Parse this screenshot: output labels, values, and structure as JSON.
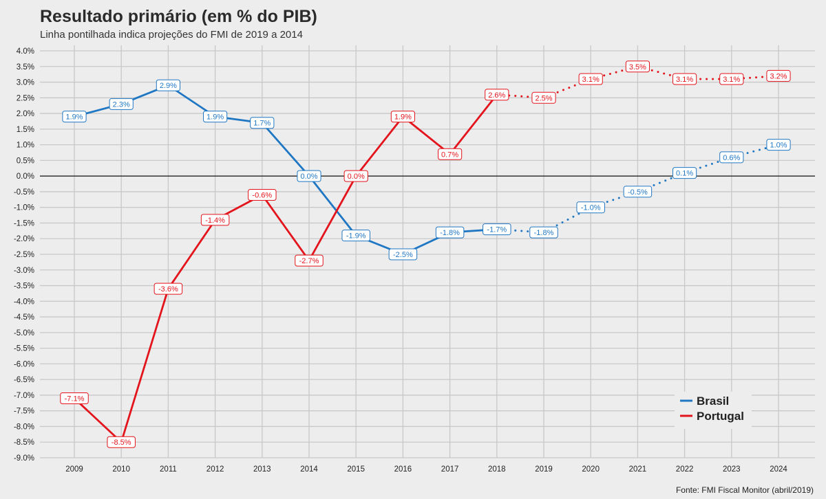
{
  "title": "Resultado primário (em % do PIB)",
  "subtitle": "Linha pontilhada indica projeções do FMI de 2019 a 2014",
  "source": "Fonte: FMI Fiscal Monitor (abril/2019)",
  "chart_data": {
    "type": "line",
    "title": "Resultado primário (em % do PIB)",
    "x": [
      2009,
      2010,
      2011,
      2012,
      2013,
      2014,
      2015,
      2016,
      2017,
      2018,
      2019,
      2020,
      2021,
      2022,
      2023,
      2024
    ],
    "projection_start": 2018,
    "ylim": [
      -9.0,
      4.0
    ],
    "y_step": 0.5,
    "grid": true,
    "legend_position": "bottom-right",
    "series": [
      {
        "name": "Brasil",
        "color": "#1f77c4",
        "values": [
          1.9,
          2.3,
          2.9,
          1.9,
          1.7,
          0.0,
          -1.9,
          -2.5,
          -1.8,
          -1.7,
          -1.8,
          -1.0,
          -0.5,
          0.1,
          0.6,
          1.0
        ],
        "labels": [
          "1.9%",
          "2.3%",
          "2.9%",
          "1.9%",
          "1.7%",
          "0.0%",
          "-1.9%",
          "-2.5%",
          "-1.8%",
          "-1.7%",
          "-1.8%",
          "-1.0%",
          "-0.5%",
          "0.1%",
          "0.6%",
          "1.0%"
        ]
      },
      {
        "name": "Portugal",
        "color": "#e3141b",
        "values": [
          -7.1,
          -8.5,
          -3.6,
          -1.4,
          -0.6,
          -2.7,
          0.0,
          1.9,
          0.7,
          2.6,
          2.5,
          3.1,
          3.5,
          3.1,
          3.1,
          3.2
        ],
        "labels": [
          "-7.1%",
          "-8.5%",
          "-3.6%",
          "-1.4%",
          "-0.6%",
          "-2.7%",
          "0.0%",
          "1.9%",
          "0.7%",
          "2.6%",
          "2.5%",
          "3.1%",
          "3.5%",
          "3.1%",
          "3.1%",
          "3.2%"
        ]
      }
    ]
  }
}
